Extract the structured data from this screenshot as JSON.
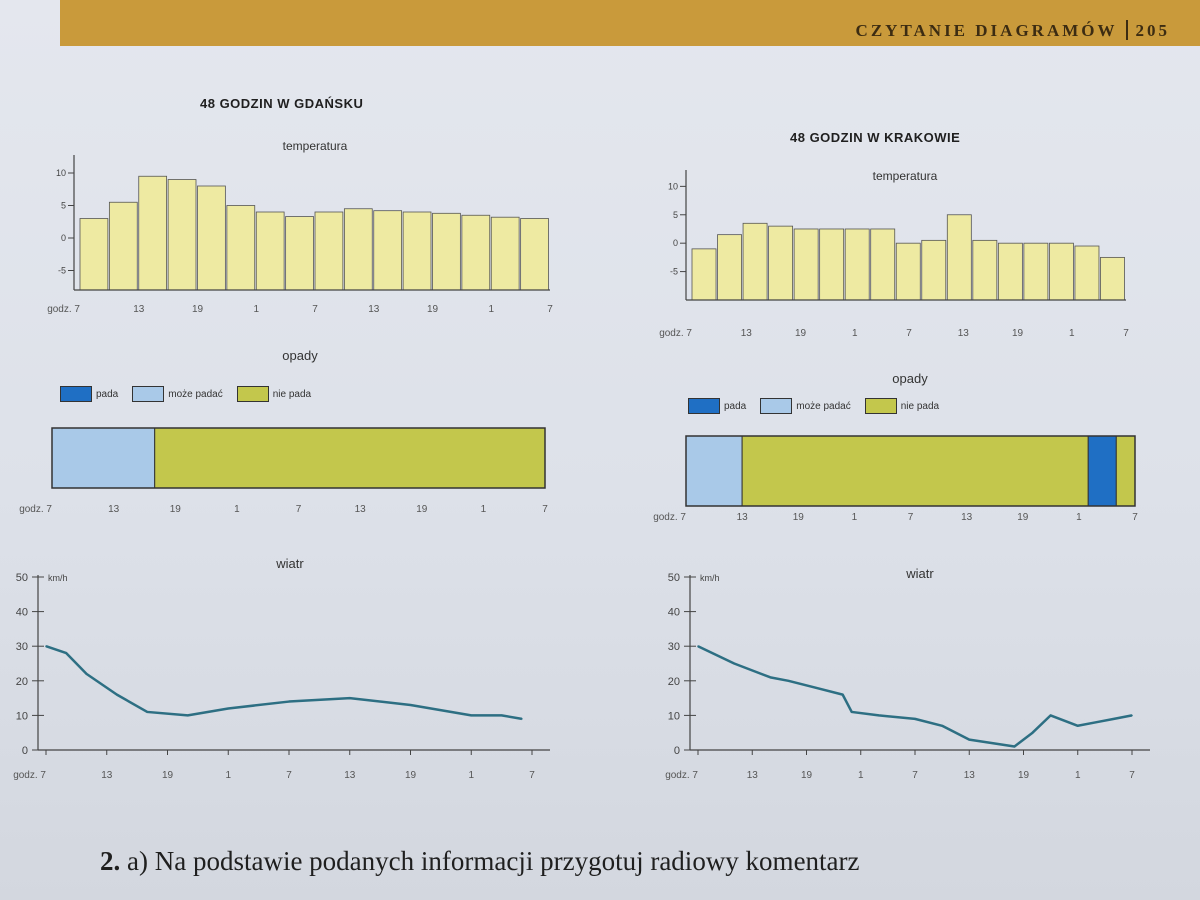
{
  "header": {
    "section": "CZYTANIE DIAGRAMÓW",
    "page_number": "205"
  },
  "colors": {
    "bar_fill": "#eeeaa2",
    "pada": "#1f6fc4",
    "moze_padac": "#a9c9e8",
    "nie_pada": "#c3c74c",
    "wind_line": "#2d6f83"
  },
  "legend": {
    "pada": "pada",
    "moze_padac": "może padać",
    "nie_pada": "nie pada"
  },
  "chart_data": [
    {
      "city": "gdansk",
      "title": "48 GODZIN W GDAŃSKU",
      "temperature": {
        "type": "bar",
        "title": "temperatura",
        "y_ticks": [
          "10",
          "5",
          "0",
          "-5"
        ],
        "ylim": [
          -8,
          12
        ],
        "x_tick_labels": [
          "godz. 7",
          "13",
          "19",
          "1",
          "7",
          "13",
          "19",
          "1",
          "7"
        ],
        "values": [
          3,
          5.5,
          9.5,
          9,
          8,
          5,
          4,
          3.3,
          4,
          4.5,
          4.2,
          4,
          3.8,
          3.5,
          3.2,
          3
        ]
      },
      "precipitation": {
        "type": "bar",
        "title": "opady",
        "x_tick_labels": [
          "godz. 7",
          "13",
          "19",
          "1",
          "7",
          "13",
          "19",
          "1",
          "7"
        ],
        "segments": [
          {
            "category": "moze_padac",
            "from": 0,
            "to": 10
          },
          {
            "category": "nie_pada",
            "from": 10,
            "to": 48
          }
        ]
      },
      "wind": {
        "type": "line",
        "title": "wiatr",
        "unit": "km/h",
        "y_ticks": [
          "50",
          "40",
          "30",
          "20",
          "10",
          "0"
        ],
        "ylim": [
          0,
          50
        ],
        "x_tick_labels": [
          "godz. 7",
          "13",
          "19",
          "1",
          "7",
          "13",
          "19",
          "1",
          "7"
        ],
        "x": [
          0,
          2,
          4,
          7,
          10,
          14,
          18,
          24,
          30,
          36,
          42,
          45,
          47
        ],
        "values": [
          30,
          28,
          22,
          16,
          11,
          10,
          12,
          14,
          15,
          13,
          10,
          10,
          9
        ]
      }
    },
    {
      "city": "krakow",
      "title": "48 GODZIN W KRAKOWIE",
      "temperature": {
        "type": "bar",
        "title": "temperatura",
        "y_ticks": [
          "10",
          "5",
          "0",
          "-5"
        ],
        "ylim": [
          -10,
          12
        ],
        "x_tick_labels": [
          "godz. 7",
          "13",
          "19",
          "1",
          "7",
          "13",
          "19",
          "1",
          "7"
        ],
        "values": [
          -1,
          1.5,
          3.5,
          3,
          2.5,
          2.5,
          2.5,
          2.5,
          0,
          0.5,
          5,
          0.5,
          0,
          0,
          0,
          -0.5,
          -2.5
        ]
      },
      "precipitation": {
        "type": "bar",
        "title": "opady",
        "x_tick_labels": [
          "godz. 7",
          "13",
          "19",
          "1",
          "7",
          "13",
          "19",
          "1",
          "7"
        ],
        "segments": [
          {
            "category": "moze_padac",
            "from": 0,
            "to": 6
          },
          {
            "category": "nie_pada",
            "from": 6,
            "to": 43
          },
          {
            "category": "pada",
            "from": 43,
            "to": 46
          },
          {
            "category": "nie_pada",
            "from": 46,
            "to": 48
          }
        ]
      },
      "wind": {
        "type": "line",
        "title": "wiatr",
        "unit": "km/h",
        "y_ticks": [
          "50",
          "40",
          "30",
          "20",
          "10",
          "0"
        ],
        "ylim": [
          0,
          50
        ],
        "x_tick_labels": [
          "godz. 7",
          "13",
          "19",
          "1",
          "7",
          "13",
          "19",
          "1",
          "7"
        ],
        "x": [
          0,
          4,
          8,
          10,
          13,
          16,
          17,
          20,
          24,
          27,
          30,
          35,
          37,
          39,
          42,
          44,
          46,
          48
        ],
        "values": [
          30,
          25,
          21,
          20,
          18,
          16,
          11,
          10,
          9,
          7,
          3,
          1,
          5,
          10,
          7,
          8,
          9,
          10
        ]
      }
    }
  ],
  "exercise_text": {
    "number": "2.",
    "text": "a) Na podstawie podanych informacji przygotuj radiowy komentarz"
  }
}
